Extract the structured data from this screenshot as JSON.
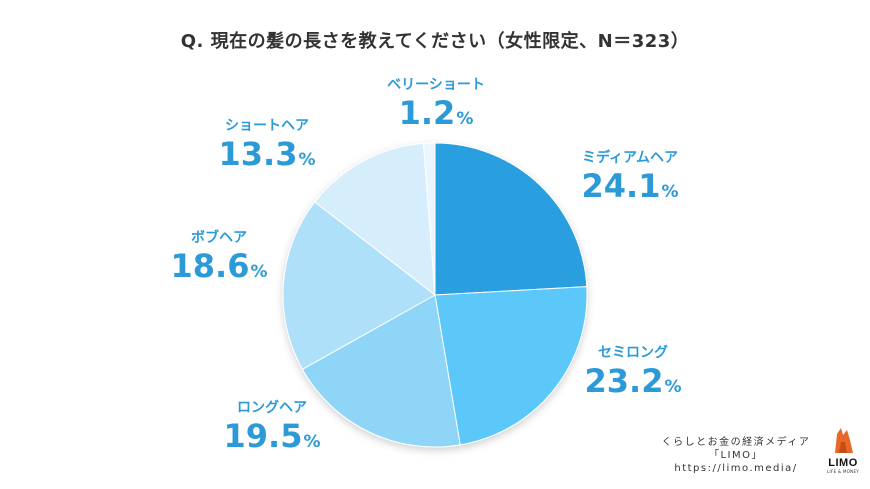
{
  "title": "Q. 現在の髪の長さを教えてください（女性限定、N＝323）",
  "chart_data": {
    "type": "pie",
    "title": "Q. 現在の髪の長さを教えてください（女性限定、N＝323）",
    "unit": "%",
    "slices": [
      {
        "label": "ミディアムヘア",
        "value": 24.1,
        "value_text": "24.1",
        "color": "#2b9fe0"
      },
      {
        "label": "セミロング",
        "value": 23.2,
        "value_text": "23.2",
        "color": "#5bc8fa"
      },
      {
        "label": "ロングヘア",
        "value": 19.5,
        "value_text": "19.5",
        "color": "#8fd5f7"
      },
      {
        "label": "ボブヘア",
        "value": 18.6,
        "value_text": "18.6",
        "color": "#afe0f9"
      },
      {
        "label": "ショートヘア",
        "value": 13.3,
        "value_text": "13.3",
        "color": "#d6eefb"
      },
      {
        "label": "ベリーショート",
        "value": 1.2,
        "value_text": "1.2",
        "color": "#eaf6fd"
      }
    ]
  },
  "footer": {
    "line1": "くらしとお金の経済メディア",
    "line2": "「LIMO」",
    "url": "https://limo.media/"
  },
  "logo": {
    "name": "LIMO",
    "sub": "LIFE & MONEY"
  }
}
